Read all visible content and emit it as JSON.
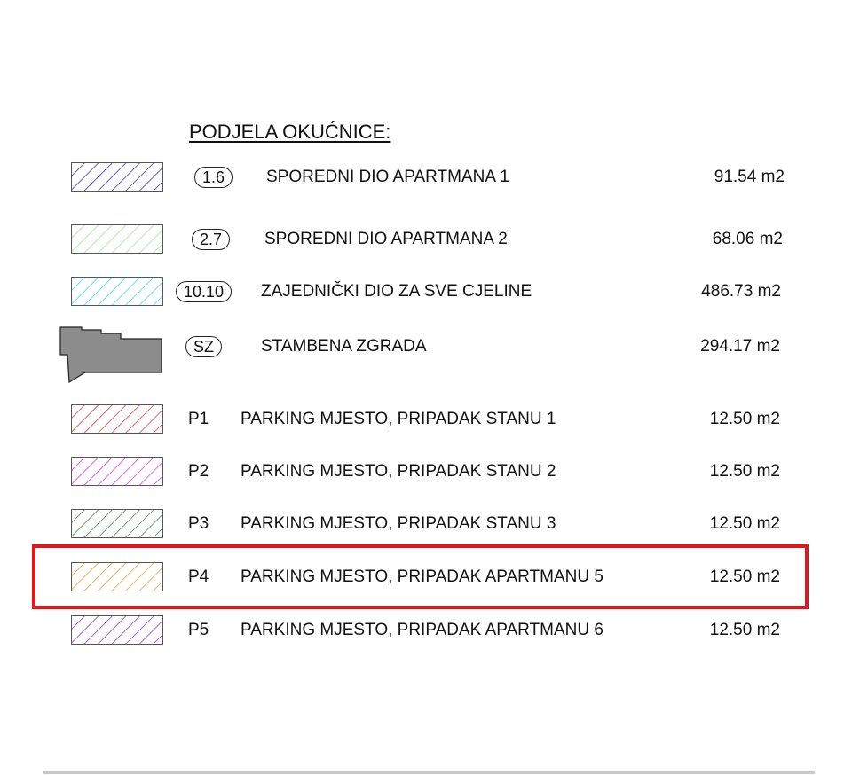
{
  "title": "PODJELA OKUĆNICE:",
  "highlight_color": "#e8141c",
  "rows": [
    {
      "badge": "1.6",
      "label": "SPOREDNI DIO APARTMANA 1",
      "value": "91.54 m2",
      "swatch": "hatch",
      "color": "#1a1ad0"
    },
    {
      "badge": "2.7",
      "label": "SPOREDNI DIO APARTMANA 2",
      "value": "68.06 m2",
      "swatch": "hatch",
      "color": "#8fe08f"
    },
    {
      "badge": "10.10",
      "label": "ZAJEDNIČKI DIO ZA SVE CJELINE",
      "value": "486.73 m2",
      "swatch": "hatch",
      "color": "#22d6e6"
    },
    {
      "badge": "SZ",
      "label": "STAMBENA ZGRADA",
      "value": "294.17 m2",
      "swatch": "building",
      "color": "#8c8c8c"
    },
    {
      "code": "P1",
      "label": "PARKING MJESTO, PRIPADAK STANU 1",
      "value": "12.50 m2",
      "swatch": "hatch",
      "color": "#e82020"
    },
    {
      "code": "P2",
      "label": "PARKING MJESTO, PRIPADAK STANU 2",
      "value": "12.50 m2",
      "swatch": "hatch",
      "color": "#e020e0"
    },
    {
      "code": "P3",
      "label": "PARKING MJESTO, PRIPADAK STANU 3",
      "value": "12.50 m2",
      "swatch": "hatch",
      "color": "#1a8a1a"
    },
    {
      "code": "P4",
      "label": "PARKING MJESTO, PRIPADAK APARTMANU 5",
      "value": "12.50 m2",
      "swatch": "hatch",
      "color": "#f08a20",
      "highlighted": true
    },
    {
      "code": "P5",
      "label": "PARKING MJESTO, PRIPADAK APARTMANU 6",
      "value": "12.50 m2",
      "swatch": "hatch",
      "color": "#7a2ad0"
    }
  ]
}
